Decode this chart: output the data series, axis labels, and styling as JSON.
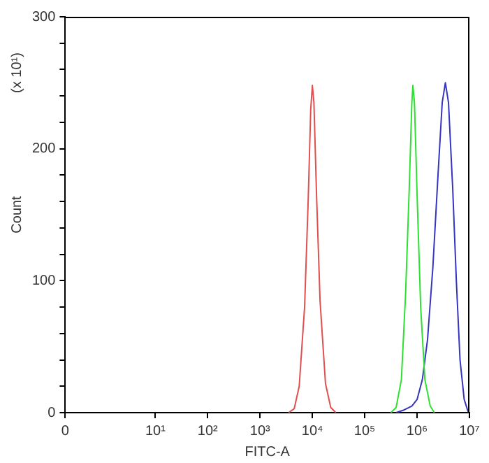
{
  "chart_data": {
    "type": "line",
    "xlabel": "FITC-A",
    "ylabel": "Count",
    "annotations": [
      "(x 10¹)"
    ],
    "log": "x",
    "xlim": [
      0.19,
      10000000
    ],
    "xticks": [
      {
        "value": 0.19,
        "label": "0"
      },
      {
        "value": 10,
        "label": "10¹"
      },
      {
        "value": 100,
        "label": "10²"
      },
      {
        "value": 1000,
        "label": "10³"
      },
      {
        "value": 10000,
        "label": "10⁴"
      },
      {
        "value": 100000,
        "label": "10⁵"
      },
      {
        "value": 1000000,
        "label": "10⁶"
      },
      {
        "value": 10000000,
        "label": "10⁷"
      }
    ],
    "ylim": [
      0,
      300
    ],
    "yticks": [
      0,
      {
        "value": 20,
        "label": null
      },
      {
        "value": 40,
        "label": null
      },
      {
        "value": 60,
        "label": null
      },
      {
        "value": 80,
        "label": null
      },
      100,
      {
        "value": 120,
        "label": null
      },
      {
        "value": 140,
        "label": null
      },
      {
        "value": 160,
        "label": null
      },
      {
        "value": 180,
        "label": null
      },
      200,
      {
        "value": 220,
        "label": null
      },
      {
        "value": 240,
        "label": null
      },
      {
        "value": 260,
        "label": null
      },
      {
        "value": 280,
        "label": null
      },
      300
    ],
    "grid": false,
    "legend": false,
    "marker": "none",
    "line_style": "solid",
    "series": [
      {
        "color": "#e05050",
        "x": [
          3500,
          4500,
          5600,
          7100,
          8300,
          9300,
          10000,
          10700,
          12000,
          14000,
          17800,
          22400,
          28000
        ],
        "values": [
          0,
          3,
          20,
          80,
          160,
          230,
          248,
          235,
          165,
          85,
          22,
          4,
          0
        ]
      },
      {
        "color": "#30e030",
        "x": [
          316000,
          398000,
          501000,
          603000,
          708000,
          794000,
          832000,
          891000,
          1000000,
          1170000,
          1410000,
          1780000,
          2140000
        ],
        "values": [
          0,
          4,
          25,
          90,
          170,
          235,
          248,
          235,
          165,
          80,
          25,
          5,
          0
        ]
      },
      {
        "color": "#3535c0",
        "x": [
          398000,
          562000,
          794000,
          1000000,
          1260000,
          1580000,
          2000000,
          2510000,
          3020000,
          3470000,
          3980000,
          4790000,
          5620000,
          6610000,
          7940000,
          9550000
        ],
        "values": [
          0,
          2,
          5,
          10,
          25,
          55,
          110,
          180,
          235,
          250,
          235,
          170,
          100,
          40,
          10,
          0
        ]
      }
    ]
  }
}
